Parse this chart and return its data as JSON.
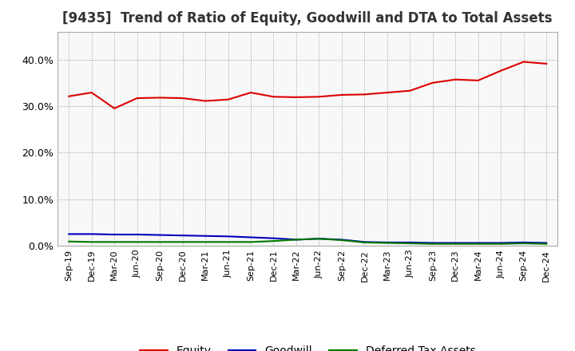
{
  "title": "[9435]  Trend of Ratio of Equity, Goodwill and DTA to Total Assets",
  "x_labels": [
    "Sep-19",
    "Dec-19",
    "Mar-20",
    "Jun-20",
    "Sep-20",
    "Dec-20",
    "Mar-21",
    "Jun-21",
    "Sep-21",
    "Dec-21",
    "Mar-22",
    "Jun-22",
    "Sep-22",
    "Dec-22",
    "Mar-23",
    "Jun-23",
    "Sep-23",
    "Dec-23",
    "Mar-24",
    "Jun-24",
    "Sep-24",
    "Dec-24"
  ],
  "equity": [
    0.321,
    0.329,
    0.295,
    0.317,
    0.318,
    0.317,
    0.311,
    0.314,
    0.329,
    0.32,
    0.319,
    0.32,
    0.324,
    0.325,
    0.329,
    0.333,
    0.35,
    0.357,
    0.355,
    0.376,
    0.395,
    0.391
  ],
  "goodwill": [
    0.025,
    0.025,
    0.024,
    0.024,
    0.023,
    0.022,
    0.021,
    0.02,
    0.018,
    0.016,
    0.013,
    0.015,
    0.013,
    0.008,
    0.007,
    0.007,
    0.006,
    0.006,
    0.006,
    0.006,
    0.007,
    0.006
  ],
  "dta": [
    0.009,
    0.008,
    0.008,
    0.008,
    0.008,
    0.008,
    0.008,
    0.008,
    0.008,
    0.01,
    0.013,
    0.015,
    0.012,
    0.007,
    0.006,
    0.005,
    0.004,
    0.004,
    0.004,
    0.004,
    0.005,
    0.004
  ],
  "equity_color": "#dd0000",
  "goodwill_color": "#0000bb",
  "dta_color": "#007700",
  "ylim": [
    0.0,
    0.46
  ],
  "yticks": [
    0.0,
    0.1,
    0.2,
    0.3,
    0.4
  ],
  "background_color": "#ffffff",
  "plot_bg_color": "#f8f8f8",
  "grid_color": "#999999",
  "title_fontsize": 12,
  "tick_fontsize": 8,
  "legend_labels": [
    "Equity",
    "Goodwill",
    "Deferred Tax Assets"
  ]
}
